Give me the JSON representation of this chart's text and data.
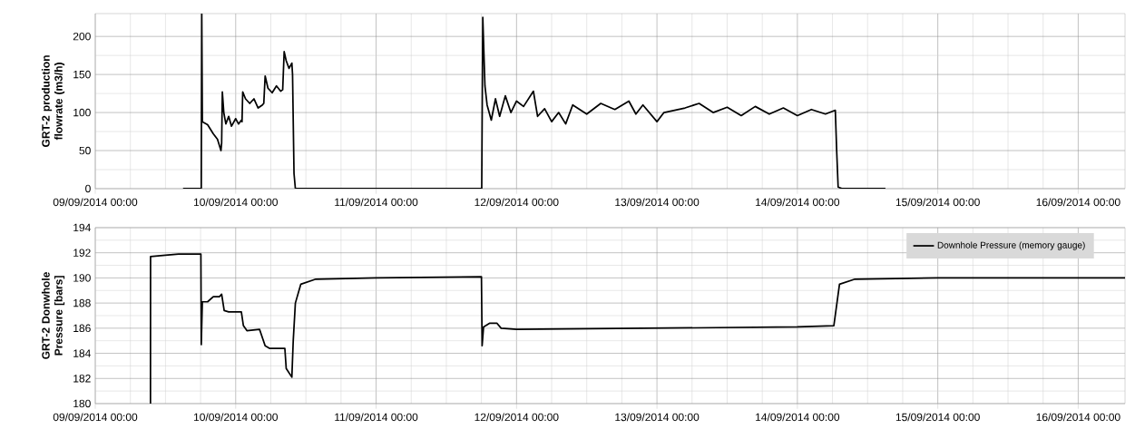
{
  "chart_data": [
    {
      "type": "line",
      "ylabel": "GRT-2 production  flowrate (m3/h)",
      "xlim": [
        "2014-09-09T00:00",
        "2014-09-16T08:00"
      ],
      "ylim": [
        0,
        230
      ],
      "yticks": [
        0,
        50,
        100,
        150,
        200
      ],
      "xticks": [
        {
          "value": "2014-09-09T00:00",
          "label": "09/09/2014 00:00"
        },
        {
          "value": "2014-09-10T00:00",
          "label": "10/09/2014 00:00"
        },
        {
          "value": "2014-09-11T00:00",
          "label": "11/09/2014 00:00"
        },
        {
          "value": "2014-09-12T00:00",
          "label": "12/09/2014 00:00"
        },
        {
          "value": "2014-09-13T00:00",
          "label": "13/09/2014 00:00"
        },
        {
          "value": "2014-09-14T00:00",
          "label": "14/09/2014 00:00"
        },
        {
          "value": "2014-09-15T00:00",
          "label": "15/09/2014 00:00"
        },
        {
          "value": "2014-09-16T00:00",
          "label": "16/09/2014 00:00"
        }
      ],
      "grid": true,
      "series": [
        {
          "color": "#000000",
          "x": [
            "2014-09-09T15:00",
            "2014-09-09T18:07",
            "2014-09-09T18:12",
            "2014-09-09T18:18",
            "2014-09-09T19:12",
            "2014-09-09T20:10",
            "2014-09-09T20:53",
            "2014-09-09T21:29",
            "2014-09-09T21:36",
            "2014-09-09T21:43",
            "2014-09-09T21:58",
            "2014-09-09T22:19",
            "2014-09-09T22:48",
            "2014-09-09T23:17",
            "2014-09-10T00:00",
            "2014-09-10T00:29",
            "2014-09-10T00:58",
            "2014-09-10T01:05",
            "2014-09-10T01:12",
            "2014-09-10T01:41",
            "2014-09-10T02:24",
            "2014-09-10T03:07",
            "2014-09-10T03:50",
            "2014-09-10T04:34",
            "2014-09-10T04:48",
            "2014-09-10T05:02",
            "2014-09-10T05:31",
            "2014-09-10T06:14",
            "2014-09-10T06:58",
            "2014-09-10T07:41",
            "2014-09-10T08:02",
            "2014-09-10T08:17",
            "2014-09-10T08:38",
            "2014-09-10T09:07",
            "2014-09-10T09:36",
            "2014-09-10T09:43",
            "2014-09-10T09:58",
            "2014-09-10T10:12",
            "2014-09-11T18:03",
            "2014-09-11T18:14",
            "2014-09-11T18:36",
            "2014-09-11T18:58",
            "2014-09-11T19:41",
            "2014-09-11T20:24",
            "2014-09-11T21:07",
            "2014-09-11T22:05",
            "2014-09-11T23:02",
            "2014-09-12T00:00",
            "2014-09-12T01:12",
            "2014-09-12T02:53",
            "2014-09-12T03:36",
            "2014-09-12T04:48",
            "2014-09-12T06:00",
            "2014-09-12T07:12",
            "2014-09-12T08:24",
            "2014-09-12T09:36",
            "2014-09-12T12:00",
            "2014-09-12T14:24",
            "2014-09-12T16:48",
            "2014-09-12T19:12",
            "2014-09-12T20:24",
            "2014-09-12T21:36",
            "2014-09-13T00:00",
            "2014-09-13T01:12",
            "2014-09-13T04:48",
            "2014-09-13T07:12",
            "2014-09-13T09:36",
            "2014-09-13T12:00",
            "2014-09-13T14:24",
            "2014-09-13T16:48",
            "2014-09-13T19:12",
            "2014-09-13T21:36",
            "2014-09-14T00:00",
            "2014-09-14T02:24",
            "2014-09-14T04:48",
            "2014-09-14T06:29",
            "2014-09-14T06:43",
            "2014-09-14T06:58",
            "2014-09-14T07:41",
            "2014-09-14T15:03"
          ],
          "values": [
            0,
            0,
            230,
            88,
            84,
            72,
            65,
            50,
            60,
            127,
            100,
            85,
            95,
            82,
            92,
            85,
            90,
            88,
            127,
            118,
            112,
            118,
            106,
            110,
            112,
            148,
            132,
            126,
            135,
            128,
            130,
            180,
            168,
            158,
            165,
            150,
            20,
            0,
            0,
            225,
            135,
            110,
            90,
            118,
            95,
            122,
            100,
            115,
            108,
            128,
            95,
            105,
            88,
            100,
            85,
            110,
            98,
            112,
            104,
            115,
            98,
            110,
            88,
            100,
            106,
            112,
            100,
            107,
            96,
            108,
            98,
            106,
            96,
            104,
            98,
            103,
            50,
            2,
            0,
            0
          ]
        }
      ]
    },
    {
      "type": "line",
      "ylabel": "GRT-2 Donwhole Pressure [bars]",
      "xlim": [
        "2014-09-09T00:00",
        "2014-09-16T08:00"
      ],
      "ylim": [
        180,
        194
      ],
      "yticks": [
        180,
        182,
        184,
        186,
        188,
        190,
        192,
        194
      ],
      "xticks": [
        {
          "value": "2014-09-09T00:00",
          "label": "09/09/2014 00:00"
        },
        {
          "value": "2014-09-10T00:00",
          "label": "10/09/2014 00:00"
        },
        {
          "value": "2014-09-11T00:00",
          "label": "11/09/2014 00:00"
        },
        {
          "value": "2014-09-12T00:00",
          "label": "12/09/2014 00:00"
        },
        {
          "value": "2014-09-13T00:00",
          "label": "13/09/2014 00:00"
        },
        {
          "value": "2014-09-14T00:00",
          "label": "14/09/2014 00:00"
        },
        {
          "value": "2014-09-15T00:00",
          "label": "15/09/2014 00:00"
        },
        {
          "value": "2014-09-16T00:00",
          "label": "16/09/2014 00:00"
        }
      ],
      "grid": true,
      "legend": "top right",
      "series": [
        {
          "name": "Downhole Pressure  (memory gauge)",
          "color": "#000000",
          "x": [
            "2014-09-09T09:26",
            "2014-09-09T09:27",
            "2014-09-09T12:00",
            "2014-09-09T14:15",
            "2014-09-09T18:03",
            "2014-09-09T18:07",
            "2014-09-09T18:18",
            "2014-09-09T19:12",
            "2014-09-09T20:10",
            "2014-09-09T21:13",
            "2014-09-09T21:36",
            "2014-09-09T22:02",
            "2014-09-09T22:48",
            "2014-09-10T00:58",
            "2014-09-10T01:19",
            "2014-09-10T01:55",
            "2014-09-10T04:05",
            "2014-09-10T05:02",
            "2014-09-10T05:46",
            "2014-09-10T08:24",
            "2014-09-10T08:38",
            "2014-09-10T09:36",
            "2014-09-10T09:50",
            "2014-09-10T10:12",
            "2014-09-10T11:08",
            "2014-09-10T13:41",
            "2014-09-11T00:00",
            "2014-09-11T18:00",
            "2014-09-11T18:07",
            "2014-09-11T18:22",
            "2014-09-11T19:26",
            "2014-09-11T20:38",
            "2014-09-11T21:22",
            "2014-09-12T00:00",
            "2014-09-13T00:00",
            "2014-09-14T00:00",
            "2014-09-14T06:14",
            "2014-09-14T07:12",
            "2014-09-14T09:50",
            "2014-09-15T00:00",
            "2014-09-16T08:00"
          ],
          "values": [
            180,
            191.7,
            191.8,
            191.9,
            191.9,
            184.7,
            188.1,
            188.1,
            188.5,
            188.5,
            188.7,
            187.4,
            187.3,
            187.3,
            186.2,
            185.8,
            185.9,
            184.6,
            184.4,
            184.4,
            182.8,
            182.1,
            185,
            188,
            189.5,
            189.9,
            190.0,
            190.1,
            184.6,
            186.1,
            186.4,
            186.4,
            186.0,
            185.9,
            186.0,
            186.1,
            186.2,
            189.5,
            189.9,
            190.0,
            190.0
          ]
        }
      ]
    }
  ]
}
